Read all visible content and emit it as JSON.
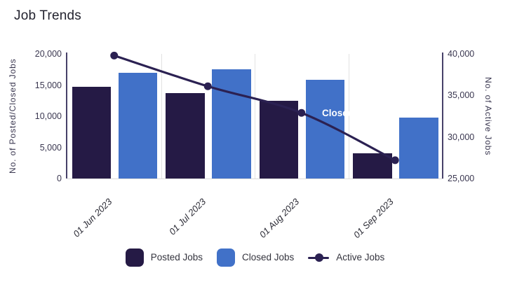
{
  "title": "Job Trends",
  "overlay_label": "Closed Jobs",
  "colors": {
    "posted_bar": "#251a45",
    "closed_bar": "#4171c8",
    "active_line": "#2b2152",
    "axis_line": "#474169",
    "tick_label": "#3a3750",
    "grid_line": "#e2e2e2",
    "x_label": "#2b2b35",
    "legend_text": "#33333d",
    "overlay_text": "#ffffff",
    "background": "#ffffff"
  },
  "chart_data": {
    "type": "bar",
    "subtype": "grouped bars with overlaid smooth line on secondary axis",
    "title": "Job Trends",
    "categories": [
      "01 Jun 2023",
      "01 Jul 2023",
      "01 Aug 2023",
      "01 Sep 2023"
    ],
    "series": [
      {
        "name": "Posted Jobs",
        "type": "bar",
        "axis": "left",
        "values": [
          14700,
          13700,
          12500,
          4000
        ]
      },
      {
        "name": "Closed Jobs",
        "type": "bar",
        "axis": "left",
        "values": [
          17000,
          17500,
          15800,
          9800
        ]
      },
      {
        "name": "Active Jobs",
        "type": "line",
        "axis": "right",
        "values": [
          39800,
          36100,
          32900,
          27200
        ]
      }
    ],
    "left_axis": {
      "label": "No. of Posted/Closed Jobs",
      "min": 0,
      "max": 20000,
      "ticks": [
        "20,000",
        "15,000",
        "10,000",
        "5,000",
        "0"
      ]
    },
    "right_axis": {
      "label": "No. of Active Jobs",
      "min": 25000,
      "max": 40000,
      "ticks": [
        "40,000",
        "35,000",
        "30,000",
        "25,000"
      ]
    },
    "grid": "vertical category separators only",
    "legend_position": "bottom"
  },
  "legend": [
    {
      "label": "Posted Jobs",
      "swatch": "square",
      "color_key": "posted_bar"
    },
    {
      "label": "Closed Jobs",
      "swatch": "square",
      "color_key": "closed_bar"
    },
    {
      "label": "Active Jobs",
      "swatch": "line-dot",
      "color_key": "active_line"
    }
  ]
}
